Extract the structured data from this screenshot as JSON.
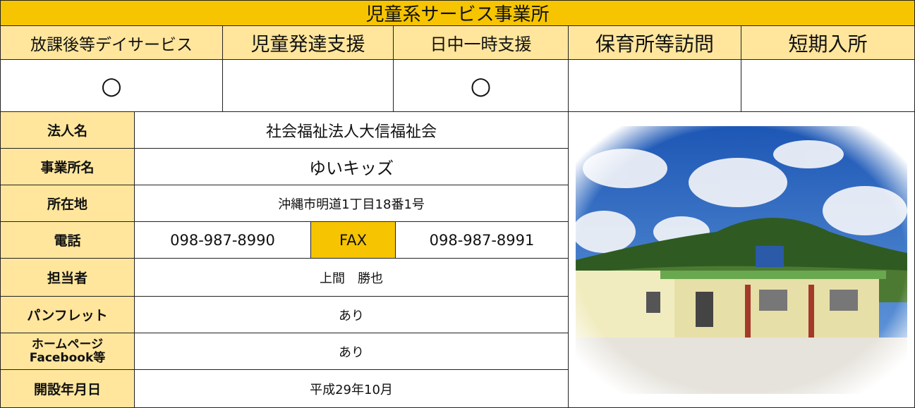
{
  "title": "児童系サービス事業所",
  "services": [
    {
      "name": "放課後等デイサービス",
      "mark": "○"
    },
    {
      "name": "児童発達支援"
    },
    {
      "name": "日中一時支援",
      "mark": "○"
    },
    {
      "name": "保育所等訪問"
    },
    {
      "name": "短期入所"
    }
  ],
  "info": {
    "corporation": {
      "label": "法人名",
      "value": "社会福祉法人大信福祉会"
    },
    "office": {
      "label": "事業所名",
      "value": "ゆいキッズ"
    },
    "address": {
      "label": "所在地",
      "value": "沖縄市明道1丁目18番1号"
    },
    "phone": {
      "label": "電話",
      "tel": "098-987-8990",
      "fax_label": "FAX",
      "fax": "098-987-8991"
    },
    "contact": {
      "label": "担当者",
      "value": "上間　勝也"
    },
    "pamphlet": {
      "label": "パンフレット",
      "value": "あり"
    },
    "website": {
      "label": "ホームページ Facebook等",
      "value": "あり"
    },
    "opened": {
      "label": "開設年月日",
      "value": "平成29年10月"
    }
  }
}
